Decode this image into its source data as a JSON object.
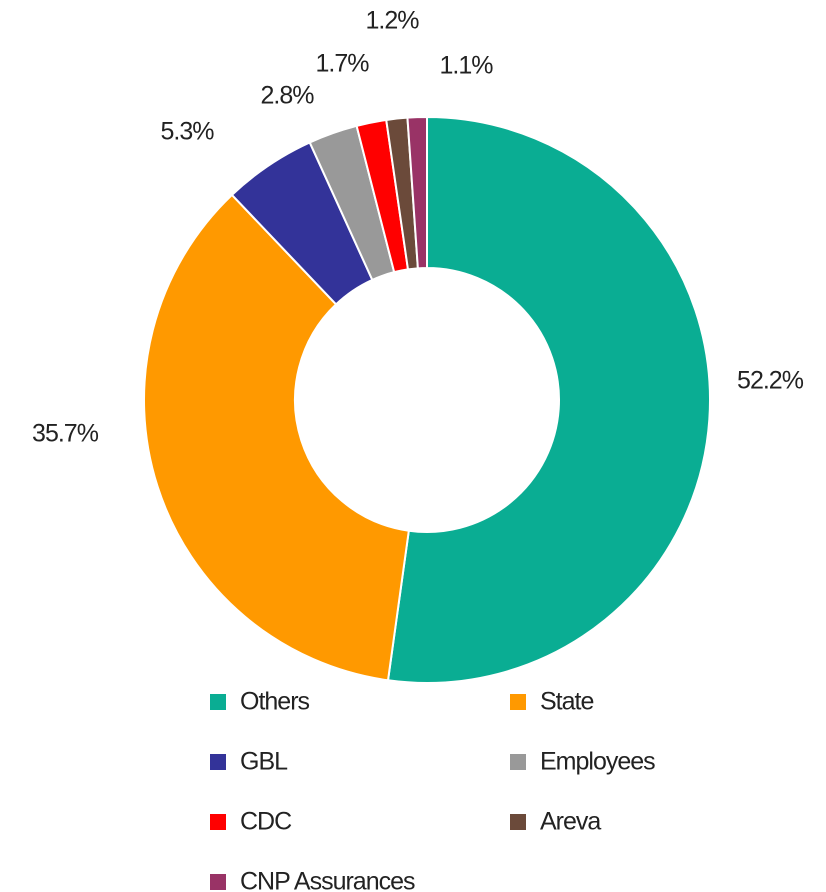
{
  "chart_data": {
    "type": "pie",
    "categories": [
      "Others",
      "State",
      "GBL",
      "Employees",
      "CDC",
      "Areva",
      "CNP Assurances"
    ],
    "values": [
      52.2,
      35.7,
      5.3,
      2.8,
      1.7,
      1.2,
      1.1
    ],
    "value_labels": [
      "52.2%",
      "35.7%",
      "5.3%",
      "2.8%",
      "1.7%",
      "1.2%",
      "1.1%"
    ],
    "colors": [
      "#0aad93",
      "#ff9900",
      "#333399",
      "#999999",
      "#ff0000",
      "#6b4a3a",
      "#993366"
    ],
    "legend": "bottom"
  }
}
